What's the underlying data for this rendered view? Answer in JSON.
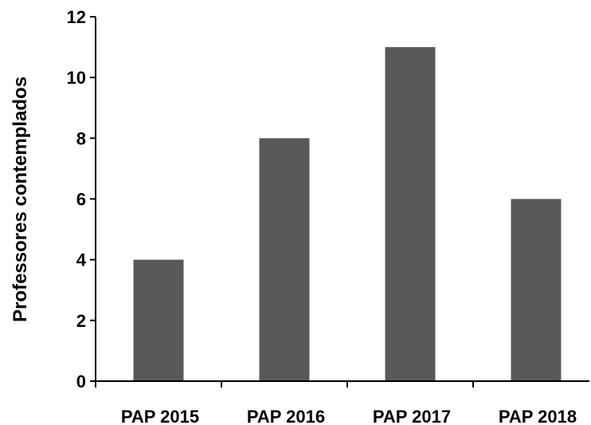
{
  "chart_data": {
    "type": "bar",
    "title": "",
    "xlabel": "",
    "ylabel": "Professores contemplados",
    "categories": [
      "PAP 2015",
      "PAP 2016",
      "PAP 2017",
      "PAP 2018"
    ],
    "values": [
      4,
      8,
      11,
      6
    ],
    "ylim": [
      0,
      12
    ],
    "yticks": [
      "0",
      "2",
      "4",
      "6",
      "8",
      "10",
      "12"
    ],
    "grid": false,
    "legend": "none",
    "bar_color": "#595959",
    "axis_color": "#000000"
  }
}
